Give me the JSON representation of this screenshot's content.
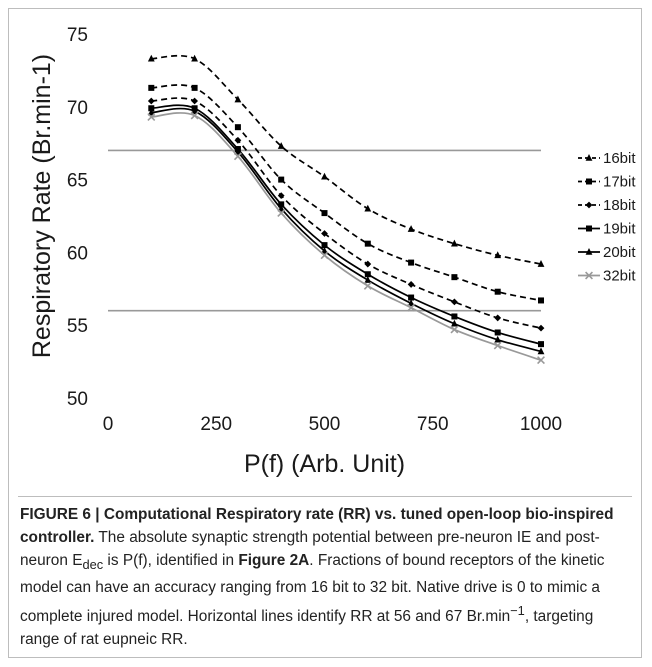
{
  "chart_data": {
    "type": "line",
    "title": "",
    "xlabel": "P(f) (Arb. Unit)",
    "ylabel": "Respiratory Rate (Br.min-1)",
    "xlim": [
      0,
      1000
    ],
    "ylim": [
      50,
      75
    ],
    "x_ticks": [
      "0",
      "250",
      "500",
      "750",
      "1000"
    ],
    "y_ticks": [
      "50",
      "55",
      "60",
      "65",
      "70",
      "75"
    ],
    "grid": false,
    "legend_position": "right",
    "x": [
      100,
      200,
      300,
      400,
      500,
      600,
      700,
      800,
      900,
      1000
    ],
    "series": [
      {
        "name": "16bit",
        "marker": "triangle",
        "dash": "dashed",
        "color": "#000000",
        "values": [
          73.3,
          73.3,
          70.5,
          67.3,
          65.2,
          63.0,
          61.6,
          60.6,
          59.8,
          59.2
        ]
      },
      {
        "name": "17bit",
        "marker": "square",
        "dash": "dashed",
        "color": "#000000",
        "values": [
          71.3,
          71.3,
          68.6,
          65.0,
          62.7,
          60.6,
          59.3,
          58.3,
          57.3,
          56.7
        ]
      },
      {
        "name": "18bit",
        "marker": "diamond",
        "dash": "dashed",
        "color": "#000000",
        "values": [
          70.4,
          70.4,
          67.7,
          63.9,
          61.3,
          59.2,
          57.8,
          56.6,
          55.5,
          54.8
        ]
      },
      {
        "name": "19bit",
        "marker": "square",
        "dash": "solid",
        "color": "#000000",
        "values": [
          69.9,
          69.9,
          67.1,
          63.3,
          60.5,
          58.5,
          56.9,
          55.6,
          54.5,
          53.7
        ]
      },
      {
        "name": "20bit",
        "marker": "triangle",
        "dash": "solid",
        "color": "#000000",
        "values": [
          69.6,
          69.7,
          66.9,
          63.0,
          60.1,
          58.1,
          56.5,
          55.1,
          54.0,
          53.2
        ]
      },
      {
        "name": "32bit",
        "marker": "x",
        "dash": "solid",
        "color": "#999999",
        "values": [
          69.3,
          69.4,
          66.6,
          62.7,
          59.8,
          57.7,
          56.2,
          54.7,
          53.6,
          52.6
        ]
      }
    ],
    "reference_lines": [
      {
        "y": 67,
        "color": "#999999"
      },
      {
        "y": 56,
        "color": "#999999"
      }
    ]
  },
  "caption": {
    "label": "FIGURE 6 | Computational Respiratory rate (RR) vs. tuned open-loop bio-inspired controller.",
    "text_1": " The absolute synaptic strength potential between pre-neuron IE and post-neuron E",
    "sub_1": "dec",
    "text_2": " is P(f), identified in ",
    "ref": "Figure 2A",
    "text_3": ". Fractions of bound receptors of the kinetic model can have an accuracy ranging from 16 bit to 32 bit. Native drive is 0 to mimic a complete injured model. Horizontal lines identify RR at 56 and 67 Br.min",
    "sup_1": "−1",
    "text_4": ", targeting range of rat eupneic RR."
  }
}
